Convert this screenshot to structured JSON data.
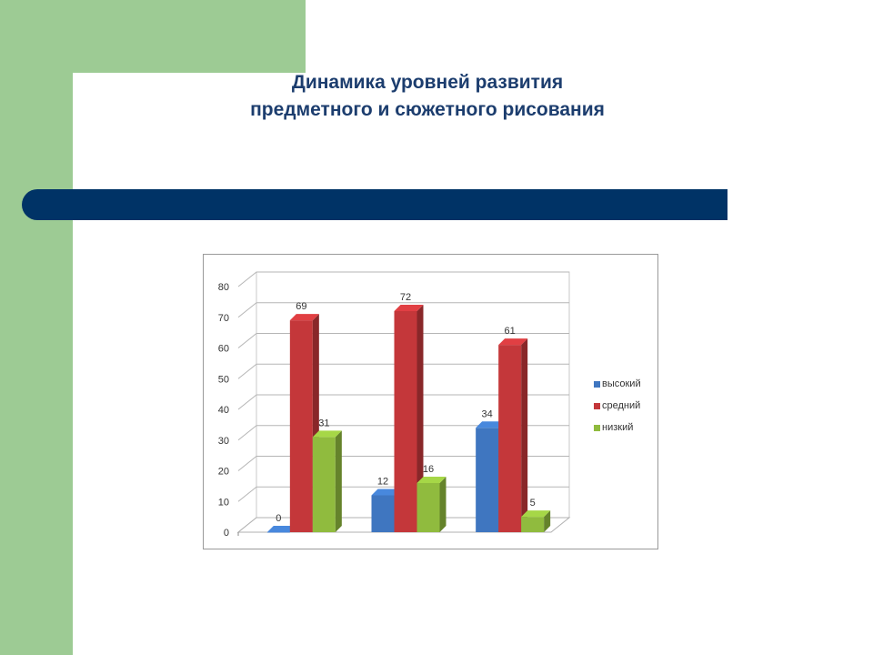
{
  "slide": {
    "title_line1": "Динамика уровней развития",
    "title_line2": "предметного и сюжетного рисования"
  },
  "colors": {
    "green_decor": "#9dcb94",
    "navy_bar": "#003366",
    "title": "#1c3d6e"
  },
  "chart_data": {
    "type": "bar",
    "categories": [
      "",
      "",
      ""
    ],
    "series": [
      {
        "name": "высокий",
        "color": "#3f76c0",
        "values": [
          0,
          12,
          34
        ]
      },
      {
        "name": "средний",
        "color": "#c4373a",
        "values": [
          69,
          72,
          61
        ]
      },
      {
        "name": "низкий",
        "color": "#90bb3e",
        "values": [
          31,
          16,
          5
        ]
      }
    ],
    "title": "",
    "xlabel": "",
    "ylabel": "",
    "ylim": [
      0,
      80
    ],
    "yticks": [
      "0",
      "10",
      "20",
      "30",
      "40",
      "50",
      "60",
      "70",
      "80"
    ],
    "grid": true,
    "legend": "right",
    "data_labels": true
  }
}
